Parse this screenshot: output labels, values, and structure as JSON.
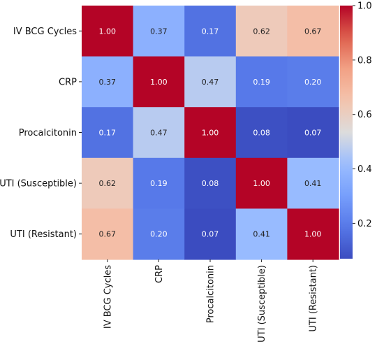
{
  "chart_data": {
    "type": "heatmap",
    "title": "",
    "xlabel": "",
    "ylabel": "",
    "rows": [
      "IV BCG Cycles",
      "CRP",
      "Procalcitonin",
      "UTI (Susceptible)",
      "UTI (Resistant)"
    ],
    "columns": [
      "IV BCG Cycles",
      "CRP",
      "Procalcitonin",
      "UTI (Susceptible)",
      "UTI (Resistant)"
    ],
    "values": [
      [
        1.0,
        0.37,
        0.17,
        0.62,
        0.67
      ],
      [
        0.37,
        1.0,
        0.47,
        0.19,
        0.2
      ],
      [
        0.17,
        0.47,
        1.0,
        0.08,
        0.07
      ],
      [
        0.62,
        0.19,
        0.08,
        1.0,
        0.41
      ],
      [
        0.67,
        0.2,
        0.07,
        0.41,
        1.0
      ]
    ],
    "value_format": "2-decimal",
    "colormap": "coolwarm",
    "colorbar": {
      "range": [
        0.07,
        1.0
      ],
      "ticks": [
        0.2,
        0.4,
        0.6,
        0.8,
        1.0
      ],
      "tick_labels": [
        "0.2",
        "0.4",
        "0.6",
        "0.8",
        "1.0"
      ]
    }
  }
}
